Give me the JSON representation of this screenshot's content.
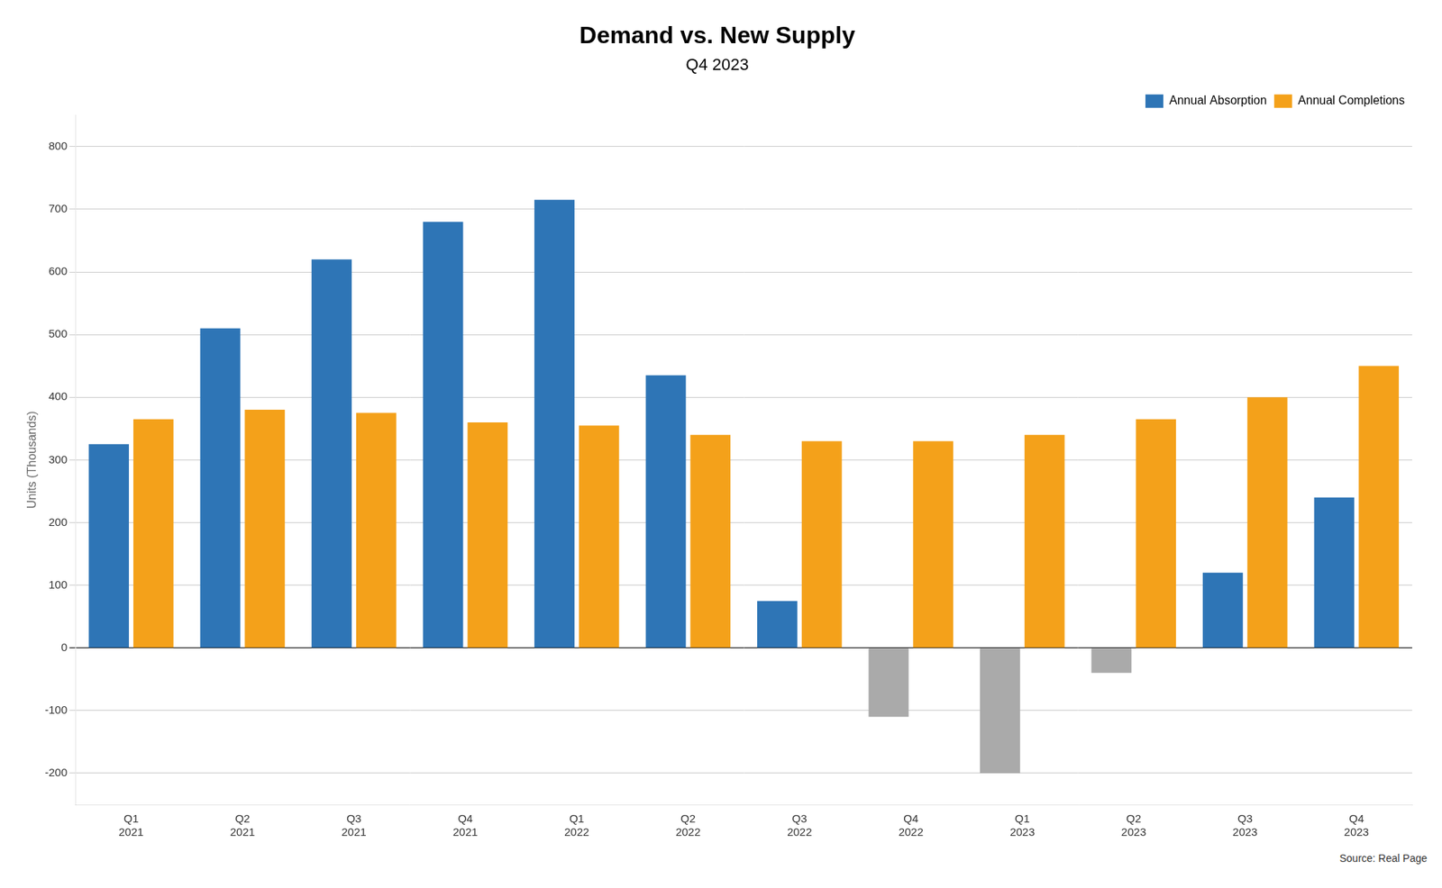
{
  "chart_data": {
    "type": "bar",
    "title": "Demand vs. New Supply",
    "subtitle": "Q4 2023",
    "ylabel": "Units (Thousands)",
    "categories": [
      "Q1\n2021",
      "Q2\n2021",
      "Q3\n2021",
      "Q4\n2021",
      "Q1\n2022",
      "Q2\n2022",
      "Q3\n2022",
      "Q4\n2022",
      "Q1\n2023",
      "Q2\n2023",
      "Q3\n2023",
      "Q4\n2023"
    ],
    "series": [
      {
        "name": "Annual Absorption",
        "color": "#2E75B6",
        "values": [
          325,
          510,
          620,
          680,
          715,
          435,
          75,
          -110,
          -200,
          -40,
          120,
          240
        ],
        "colors": [
          "#2E75B6",
          "#2E75B6",
          "#2E75B6",
          "#2E75B6",
          "#2E75B6",
          "#2E75B6",
          "#2E75B6",
          "#AAAAAA",
          "#AAAAAA",
          "#AAAAAA",
          "#2E75B6",
          "#2E75B6"
        ]
      },
      {
        "name": "Annual Completions",
        "color": "#F4A11A",
        "values": [
          365,
          380,
          375,
          360,
          355,
          340,
          330,
          330,
          340,
          365,
          400,
          450
        ]
      }
    ],
    "ylim": [
      -250,
      850
    ],
    "yticks": [
      -200,
      -100,
      0,
      100,
      200,
      300,
      400,
      500,
      600,
      700,
      800
    ],
    "grid": true,
    "legend": "upper right",
    "annotations": [
      "Source: Real Page"
    ]
  }
}
